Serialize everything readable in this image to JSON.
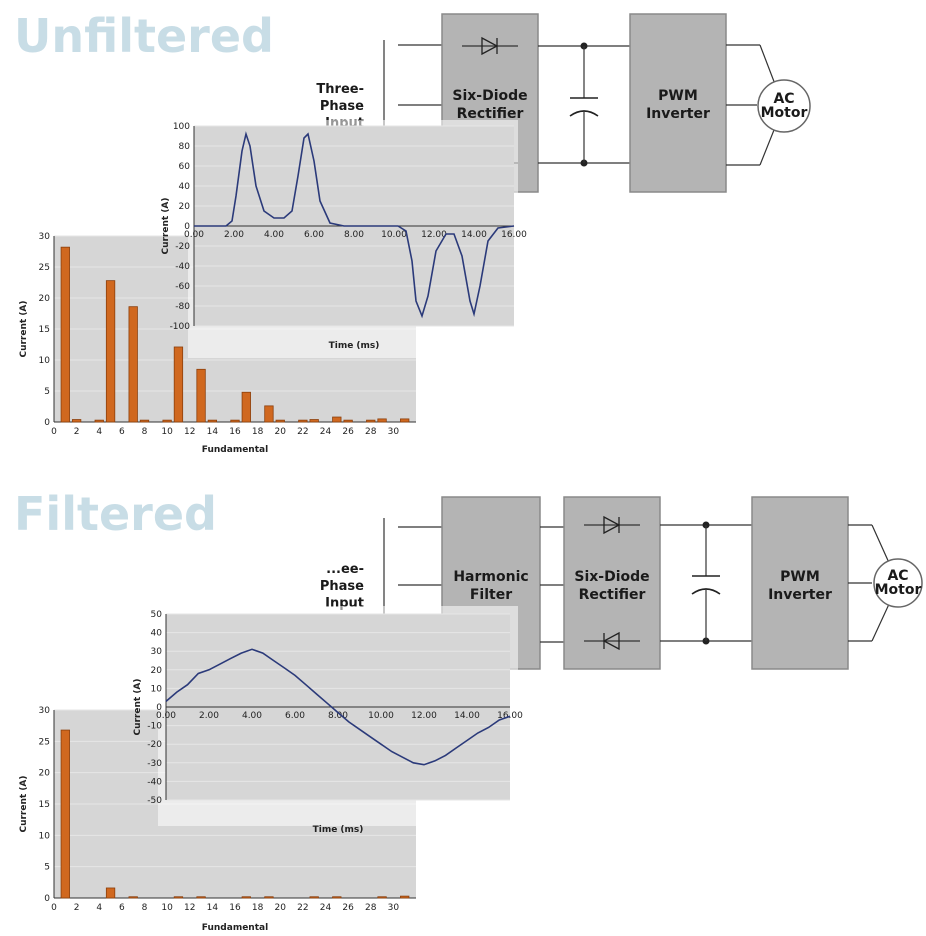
{
  "sections": [
    {
      "id": "unfiltered",
      "title": "Unfiltered",
      "input_label": [
        "Three-",
        "Phase",
        "Input"
      ],
      "blocks": [
        {
          "name": "rectifier",
          "lines": [
            "Six-Diode",
            "Rectifier"
          ]
        },
        {
          "name": "inverter",
          "lines": [
            "PWM",
            "Inverter"
          ]
        }
      ],
      "motor": [
        "AC",
        "Motor"
      ]
    },
    {
      "id": "filtered",
      "title": "Filtered",
      "input_label": [
        "...ee-",
        "Phase",
        "Input"
      ],
      "blocks": [
        {
          "name": "harmonic-filter",
          "lines": [
            "Harmonic",
            "Filter"
          ]
        },
        {
          "name": "rectifier",
          "lines": [
            "Six-Diode",
            "Rectifier"
          ]
        },
        {
          "name": "inverter",
          "lines": [
            "PWM",
            "Inverter"
          ]
        }
      ],
      "motor": [
        "AC",
        "Motor"
      ]
    }
  ],
  "chart_data": [
    {
      "type": "line",
      "section": "unfiltered",
      "xlabel": "Time (ms)",
      "ylabel": "Current (A)",
      "xlim": [
        0,
        16
      ],
      "ylim": [
        -100,
        100
      ],
      "xticks": [
        "0.00",
        "2.00",
        "4.00",
        "6.00",
        "8.00",
        "10.00",
        "12.00",
        "14.00",
        "16.00"
      ],
      "yticks": [
        "100",
        "80",
        "60",
        "40",
        "20",
        "0",
        "-20",
        "-40",
        "-60",
        "-80",
        "-100"
      ],
      "x": [
        0,
        1.6,
        1.9,
        2.1,
        2.4,
        2.6,
        2.8,
        3.1,
        3.5,
        4.0,
        4.5,
        4.9,
        5.2,
        5.5,
        5.7,
        6.0,
        6.3,
        6.8,
        7.5,
        9.0,
        10.2,
        10.6,
        10.9,
        11.1,
        11.4,
        11.7,
        12.1,
        12.6,
        13.0,
        13.4,
        13.8,
        14.0,
        14.3,
        14.7,
        15.2,
        16.0
      ],
      "y": [
        0,
        0,
        5,
        30,
        75,
        92,
        80,
        40,
        15,
        8,
        8,
        15,
        50,
        88,
        92,
        65,
        25,
        3,
        0,
        0,
        0,
        -5,
        -35,
        -75,
        -90,
        -70,
        -25,
        -8,
        -8,
        -30,
        -75,
        -88,
        -60,
        -15,
        -2,
        0
      ]
    },
    {
      "type": "bar",
      "section": "unfiltered",
      "xlabel": "Fundamental",
      "ylabel": "Current (A)",
      "xlim": [
        0,
        32
      ],
      "ylim": [
        0,
        30
      ],
      "xticks": [
        "0",
        "2",
        "4",
        "6",
        "8",
        "10",
        "12",
        "14",
        "16",
        "18",
        "20",
        "22",
        "24",
        "26",
        "28",
        "30"
      ],
      "yticks": [
        "30",
        "25",
        "20",
        "15",
        "10",
        "5",
        "0"
      ],
      "x": [
        1,
        2,
        4,
        5,
        7,
        8,
        10,
        11,
        13,
        14,
        16,
        17,
        19,
        20,
        22,
        23,
        25,
        26,
        28,
        29,
        31
      ],
      "values": [
        28.2,
        0.4,
        0.3,
        22.8,
        18.6,
        0.3,
        0.3,
        12.1,
        8.5,
        0.3,
        0.3,
        4.8,
        2.6,
        0.3,
        0.3,
        0.4,
        0.8,
        0.3,
        0.3,
        0.5,
        0.5
      ]
    },
    {
      "type": "line",
      "section": "filtered",
      "xlabel": "Time (ms)",
      "ylabel": "Current (A)",
      "xlim": [
        0,
        16
      ],
      "ylim": [
        -50,
        50
      ],
      "xticks": [
        "0.00",
        "2.00",
        "4.00",
        "6.00",
        "8.00",
        "10.00",
        "12.00",
        "14.00",
        "16.00"
      ],
      "yticks": [
        "50",
        "40",
        "30",
        "20",
        "10",
        "0",
        "-10",
        "-20",
        "-30",
        "-40",
        "-50"
      ],
      "x": [
        0,
        0.5,
        1.0,
        1.5,
        2.0,
        2.5,
        3.0,
        3.5,
        4.0,
        4.5,
        5.0,
        5.5,
        6.0,
        6.5,
        7.0,
        7.5,
        8.0,
        8.5,
        9.0,
        9.5,
        10.0,
        10.5,
        11.0,
        11.5,
        12.0,
        12.5,
        13.0,
        13.5,
        14.0,
        14.5,
        15.0,
        15.5,
        16.0
      ],
      "y": [
        3,
        8,
        12,
        18,
        20,
        23,
        26,
        29,
        31,
        29,
        25,
        21,
        17,
        12,
        7,
        2,
        -3,
        -8,
        -12,
        -16,
        -20,
        -24,
        -27,
        -30,
        -31,
        -29,
        -26,
        -22,
        -18,
        -14,
        -11,
        -7,
        -5
      ]
    },
    {
      "type": "bar",
      "section": "filtered",
      "xlabel": "Fundamental",
      "ylabel": "Current (A)",
      "xlim": [
        0,
        32
      ],
      "ylim": [
        0,
        30
      ],
      "xticks": [
        "0",
        "2",
        "4",
        "6",
        "8",
        "10",
        "12",
        "14",
        "16",
        "18",
        "20",
        "22",
        "24",
        "26",
        "28",
        "30"
      ],
      "yticks": [
        "30",
        "25",
        "20",
        "15",
        "10",
        "5",
        "0"
      ],
      "x": [
        1,
        5,
        7,
        11,
        13,
        17,
        19,
        23,
        25,
        29,
        31
      ],
      "values": [
        26.8,
        1.6,
        0.2,
        0.2,
        0.2,
        0.2,
        0.2,
        0.2,
        0.2,
        0.2,
        0.3
      ]
    }
  ]
}
